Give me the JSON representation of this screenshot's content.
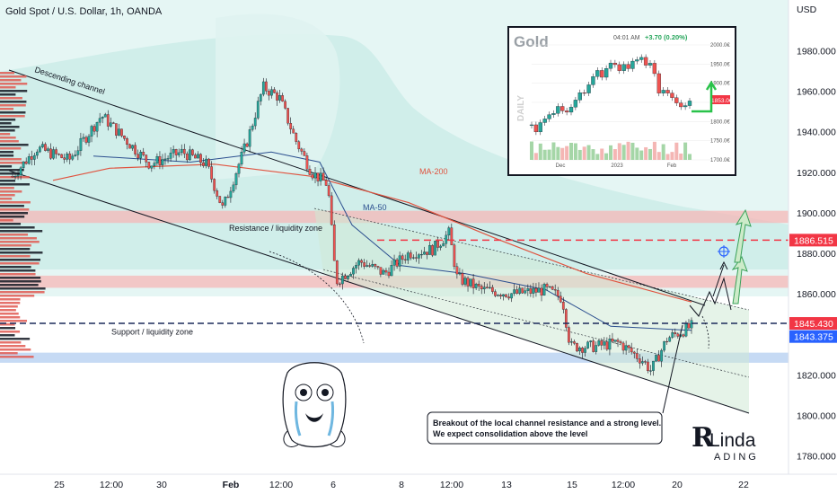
{
  "header": {
    "title": "Gold Spot / U.S. Dollar, 1h, OANDA",
    "currency": "USD"
  },
  "chart_data": {
    "type": "candlestick",
    "y_axis": {
      "ticks": [
        "1980.000",
        "1960.000",
        "1940.000",
        "1920.000",
        "1900.000",
        "1880.000",
        "1860.000",
        "1840.000",
        "1820.000",
        "1800.000",
        "1780.000"
      ],
      "tick_values": [
        1980,
        1960,
        1940,
        1920,
        1900,
        1880,
        1860,
        1840,
        1820,
        1800,
        1780
      ],
      "ylim": [
        1771,
        2005
      ]
    },
    "x_axis": {
      "ticks": [
        "25",
        "12:00",
        "30",
        "Feb",
        "12:00",
        "6",
        "8",
        "12:00",
        "13",
        "15",
        "12:00",
        "20",
        "22"
      ]
    },
    "price_labels": [
      {
        "value": 1886.515,
        "text": "1886.515",
        "color": "#f23645"
      },
      {
        "value": 1845.43,
        "text": "1845.430",
        "color": "#f23645"
      },
      {
        "value": 1843.375,
        "text": "1843.375",
        "color": "#2962ff"
      }
    ],
    "zones": [
      {
        "label": "Resistance / liquidity zone",
        "from": 1895,
        "to": 1901,
        "color": "#f5b7b7"
      },
      {
        "label": "",
        "from": 1863,
        "to": 1869,
        "color": "#f5b7b7"
      },
      {
        "label": "Support / liquidity zone",
        "from": 1826,
        "to": 1831,
        "color": "#b3cdf0"
      }
    ],
    "annotations": {
      "channel": "Descending channel",
      "ma200": "MA-200",
      "ma50": "MA-50",
      "callout_line1": "Breakout of the local channel resistance and a strong level.",
      "callout_line2": "We expect consolidation above the level"
    },
    "price_path": [
      {
        "t": 0,
        "p": 1918
      },
      {
        "t": 3,
        "p": 1932
      },
      {
        "t": 7,
        "p": 1926
      },
      {
        "t": 11,
        "p": 1948
      },
      {
        "t": 14,
        "p": 1936
      },
      {
        "t": 17,
        "p": 1924
      },
      {
        "t": 21,
        "p": 1930
      },
      {
        "t": 24,
        "p": 1924
      },
      {
        "t": 26,
        "p": 1902
      },
      {
        "t": 29,
        "p": 1935
      },
      {
        "t": 31,
        "p": 1962
      },
      {
        "t": 33,
        "p": 1957
      },
      {
        "t": 35,
        "p": 1936
      },
      {
        "t": 37,
        "p": 1920
      },
      {
        "t": 39,
        "p": 1914
      },
      {
        "t": 40,
        "p": 1866
      },
      {
        "t": 43,
        "p": 1876
      },
      {
        "t": 46,
        "p": 1870
      },
      {
        "t": 49,
        "p": 1880
      },
      {
        "t": 52,
        "p": 1882
      },
      {
        "t": 54,
        "p": 1890
      },
      {
        "t": 55,
        "p": 1868
      },
      {
        "t": 58,
        "p": 1862
      },
      {
        "t": 62,
        "p": 1860
      },
      {
        "t": 66,
        "p": 1862
      },
      {
        "t": 68,
        "p": 1858
      },
      {
        "t": 69,
        "p": 1834
      },
      {
        "t": 72,
        "p": 1834
      },
      {
        "t": 75,
        "p": 1836
      },
      {
        "t": 78,
        "p": 1827
      },
      {
        "t": 79,
        "p": 1822
      },
      {
        "t": 81,
        "p": 1838
      },
      {
        "t": 84,
        "p": 1844
      }
    ],
    "ma200": [
      {
        "t": 5,
        "p": 1916
      },
      {
        "t": 12,
        "p": 1922
      },
      {
        "t": 25,
        "p": 1924
      },
      {
        "t": 37,
        "p": 1918
      },
      {
        "t": 49,
        "p": 1905
      },
      {
        "t": 60,
        "p": 1887
      },
      {
        "t": 71,
        "p": 1870
      },
      {
        "t": 84,
        "p": 1856
      }
    ],
    "ma50": [
      {
        "t": 10,
        "p": 1928
      },
      {
        "t": 22,
        "p": 1925
      },
      {
        "t": 32,
        "p": 1930
      },
      {
        "t": 38,
        "p": 1925
      },
      {
        "t": 42,
        "p": 1894
      },
      {
        "t": 48,
        "p": 1874
      },
      {
        "t": 56,
        "p": 1870
      },
      {
        "t": 66,
        "p": 1862
      },
      {
        "t": 74,
        "p": 1844
      },
      {
        "t": 84,
        "p": 1842
      }
    ]
  },
  "inset": {
    "symbol": "Gold",
    "time": "04:01 AM",
    "change": "+3.70 (0.20%)",
    "timeframe": "DAILY",
    "y_ticks": [
      "2000.0€",
      "1950.0€",
      "1900.0€",
      "1850.0€",
      "1800.0€",
      "1750.0€",
      "1700.0€"
    ],
    "x_ticks": [
      "Dec",
      "2023",
      "Feb"
    ],
    "price_tag": "1853.0€",
    "path": [
      1790,
      1775,
      1800,
      1810,
      1815,
      1820,
      1835,
      1830,
      1825,
      1840,
      1860,
      1880,
      1875,
      1895,
      1915,
      1930,
      1920,
      1935,
      1950,
      1945,
      1930,
      1948,
      1940,
      1955,
      1960,
      1965,
      1950,
      1955,
      1925,
      1875,
      1880,
      1870,
      1860,
      1850,
      1840,
      1842,
      1853
    ]
  },
  "logo": {
    "brand_top": "Linda",
    "brand_bottom": "ADING"
  }
}
